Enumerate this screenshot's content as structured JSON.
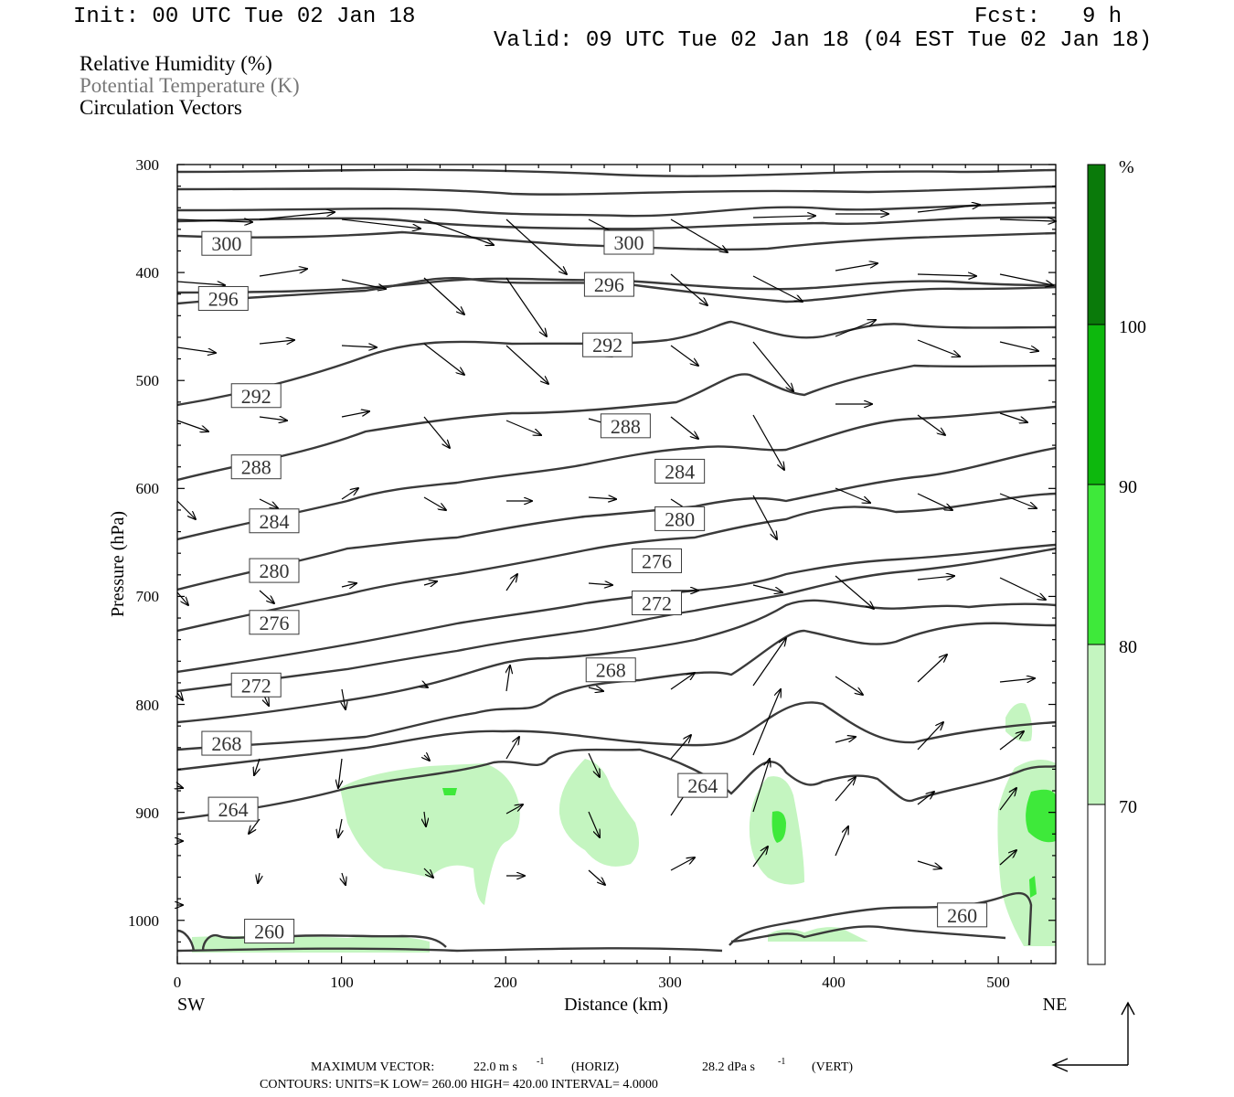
{
  "header": {
    "init": "Init: 00 UTC Tue 02 Jan 18",
    "fcst_label": "Fcst:",
    "fcst_value": "9 h",
    "valid": "Valid: 09 UTC Tue 02 Jan 18 (04 EST Tue 02 Jan 18)"
  },
  "fields": {
    "rh": "Relative Humidity (%)",
    "theta": "Potential Temperature (K)",
    "vectors": "Circulation Vectors"
  },
  "footer": {
    "max_vector_label": "MAXIMUM VECTOR:",
    "max_horiz": "22.0 m s",
    "horiz_unit": "(HORIZ)",
    "max_vert": "28.2 dPa s",
    "vert_unit": "(VERT)",
    "exponent": "-1",
    "contours_line": "CONTOURS:  UNITS=K  LOW=   260.00       HIGH=  420.00       INTERVAL=    4.0000"
  },
  "colors": {
    "contour": "#3a3a3a",
    "rh70": "#c4f5c0",
    "rh80": "#3ee93a",
    "rh90": "#0db80d",
    "rh100": "#0a7a0a"
  },
  "chart_data": {
    "type": "cross-section",
    "xlabel": "Distance (km)",
    "ylabel": "Pressure (hPa)",
    "xlim": [
      0,
      535
    ],
    "ylim": [
      1040,
      300
    ],
    "x_ticks": [
      "0",
      "100",
      "200",
      "300",
      "400",
      "500"
    ],
    "y_ticks": [
      "300",
      "400",
      "500",
      "600",
      "700",
      "800",
      "900",
      "1000"
    ],
    "x_left_label": "SW",
    "x_right_label": "NE",
    "colorbar": {
      "unit": "%",
      "levels": [
        "70",
        "80",
        "90",
        "100"
      ]
    },
    "theta_levels": [
      260,
      264,
      268,
      272,
      276,
      280,
      284,
      288,
      292,
      296,
      300
    ],
    "contour_labels": [
      {
        "text": "300",
        "x": 30,
        "p": 373
      },
      {
        "text": "300",
        "x": 275,
        "p": 372
      },
      {
        "text": "296",
        "x": 28,
        "p": 424
      },
      {
        "text": "296",
        "x": 263,
        "p": 411
      },
      {
        "text": "292",
        "x": 262,
        "p": 467
      },
      {
        "text": "292",
        "x": 48,
        "p": 514
      },
      {
        "text": "288",
        "x": 273,
        "p": 542
      },
      {
        "text": "288",
        "x": 48,
        "p": 580
      },
      {
        "text": "284",
        "x": 306,
        "p": 584
      },
      {
        "text": "284",
        "x": 59,
        "p": 630
      },
      {
        "text": "280",
        "x": 306,
        "p": 628
      },
      {
        "text": "280",
        "x": 59,
        "p": 676
      },
      {
        "text": "276",
        "x": 292,
        "p": 667
      },
      {
        "text": "276",
        "x": 59,
        "p": 724
      },
      {
        "text": "272",
        "x": 292,
        "p": 706
      },
      {
        "text": "272",
        "x": 48,
        "p": 782
      },
      {
        "text": "268",
        "x": 264,
        "p": 768
      },
      {
        "text": "268",
        "x": 30,
        "p": 836
      },
      {
        "text": "264",
        "x": 320,
        "p": 875
      },
      {
        "text": "264",
        "x": 34,
        "p": 897
      },
      {
        "text": "260",
        "x": 478,
        "p": 995
      },
      {
        "text": "260",
        "x": 56,
        "p": 1010
      }
    ]
  }
}
